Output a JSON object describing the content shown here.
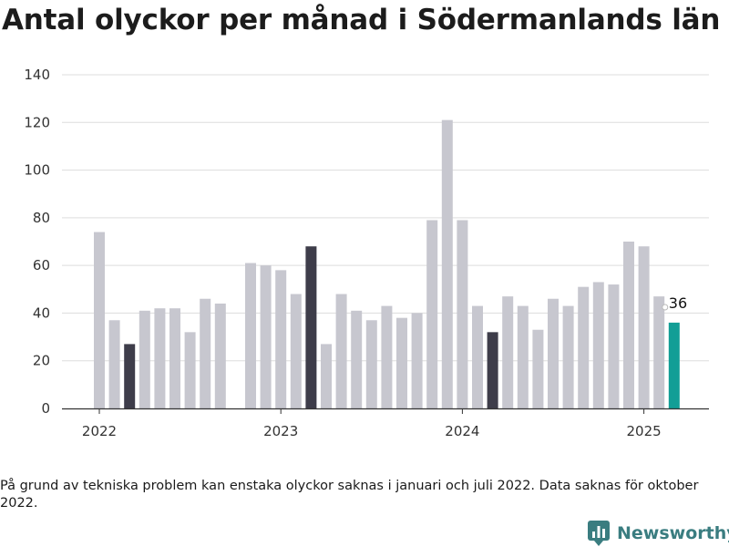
{
  "chart_data": {
    "type": "bar",
    "title": "Antal olyckor per månad i Södermanlands län",
    "xlabel": "",
    "ylabel": "",
    "ylim": [
      0,
      140
    ],
    "yticks": [
      0,
      20,
      40,
      60,
      80,
      100,
      120,
      140
    ],
    "xtick_labels": [
      "2022",
      "2023",
      "2024",
      "2025"
    ],
    "grid": true,
    "colors": {
      "default": "#c7c7cf",
      "highlight": "#3e3d4a",
      "latest": "#129e96",
      "grid": "#dddddd",
      "axis": "#333333"
    },
    "categories": [
      "2022-01",
      "2022-02",
      "2022-03",
      "2022-04",
      "2022-05",
      "2022-06",
      "2022-07",
      "2022-08",
      "2022-09",
      "2022-10",
      "2022-11",
      "2022-12",
      "2023-01",
      "2023-02",
      "2023-03",
      "2023-04",
      "2023-05",
      "2023-06",
      "2023-07",
      "2023-08",
      "2023-09",
      "2023-10",
      "2023-11",
      "2023-12",
      "2024-01",
      "2024-02",
      "2024-03",
      "2024-04",
      "2024-05",
      "2024-06",
      "2024-07",
      "2024-08",
      "2024-09",
      "2024-10",
      "2024-11",
      "2024-12",
      "2025-01",
      "2025-02",
      "2025-03"
    ],
    "values": [
      74,
      37,
      27,
      41,
      42,
      42,
      32,
      46,
      44,
      null,
      61,
      60,
      58,
      48,
      68,
      27,
      48,
      41,
      37,
      43,
      38,
      40,
      79,
      121,
      79,
      43,
      32,
      47,
      43,
      33,
      46,
      43,
      51,
      53,
      52,
      70,
      68,
      47,
      36
    ],
    "highlighted_months": [
      "2022-03",
      "2023-03",
      "2024-03"
    ],
    "latest_month": "2025-03",
    "latest_label": "36"
  },
  "footnote": "På grund av tekniska problem kan enstaka olyckor saknas i januari och juli 2022. Data saknas för oktober 2022.",
  "brand": {
    "name": "Newsworthy",
    "logo_icon": "newsworthy-bar-chart-icon"
  }
}
